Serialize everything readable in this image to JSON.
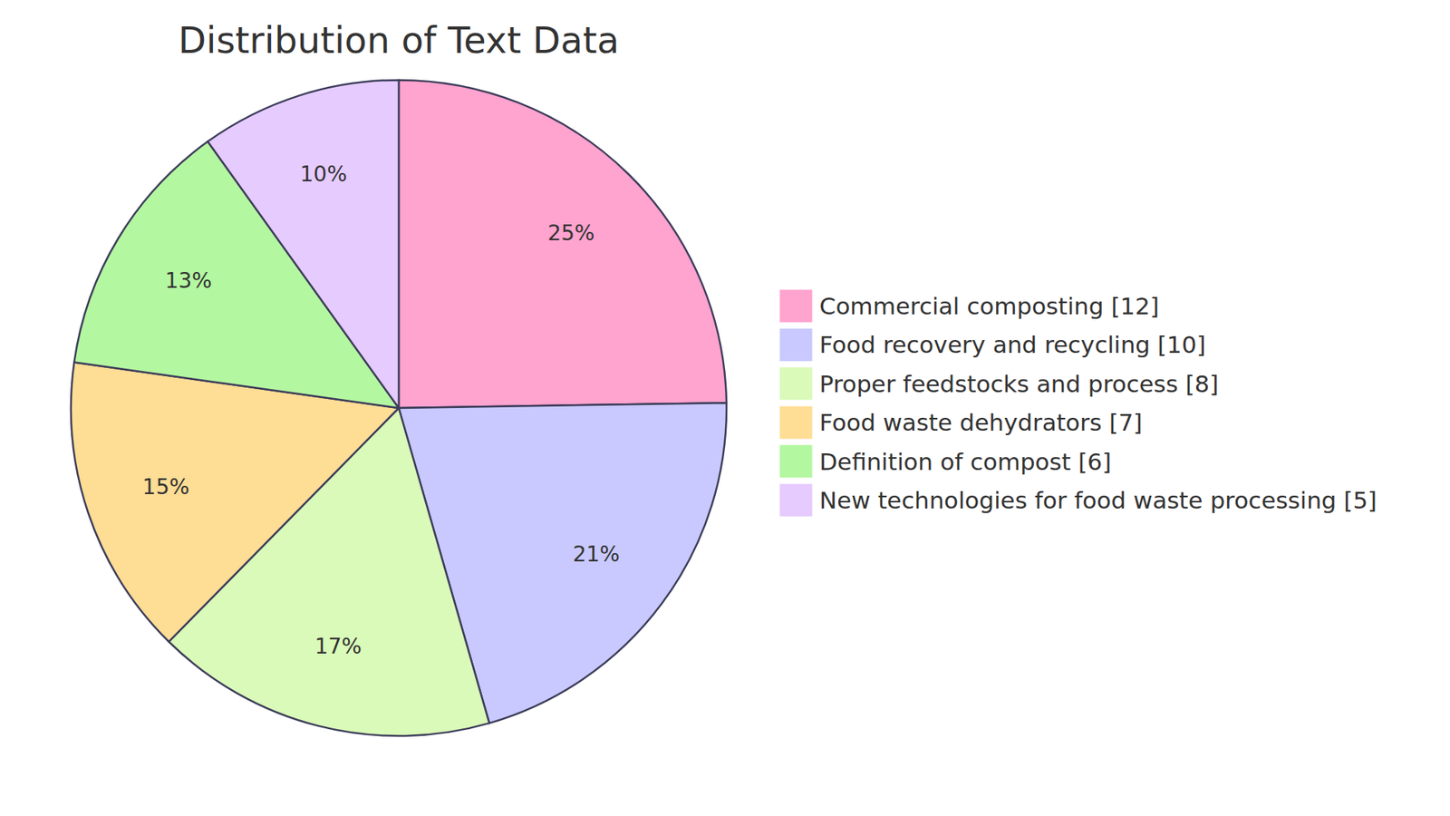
{
  "chart_data": {
    "type": "pie",
    "title": "Distribution of Text Data",
    "categories": [
      "Commercial composting [12]",
      "Food recovery and recycling [10]",
      "Proper feedstocks and process [8]",
      "Food waste dehydrators [7]",
      "Definition of compost [6]",
      "New technologies for food waste processing [5]"
    ],
    "values": [
      25,
      21,
      17,
      15,
      13,
      10
    ],
    "value_labels": [
      "25%",
      "21%",
      "17%",
      "15%",
      "13%",
      "10%"
    ],
    "colors": [
      "#ffa3cf",
      "#c9c9ff",
      "#dafab9",
      "#fedd95",
      "#b4f7a1",
      "#e6cbff"
    ],
    "data_labels": true,
    "legend": "right"
  }
}
